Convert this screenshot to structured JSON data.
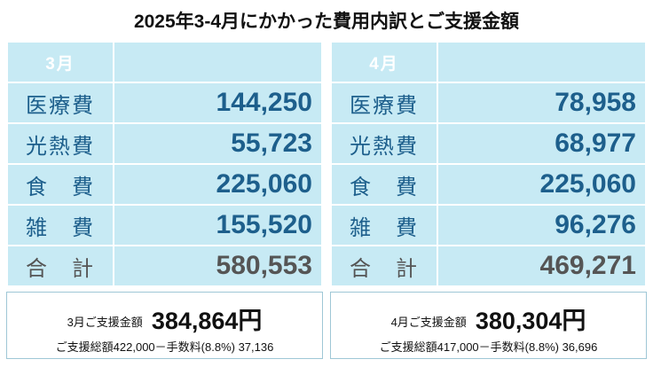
{
  "title": "2025年3-4月にかかった費用内訳とご支援金額",
  "tables": [
    {
      "month": "3月",
      "rows": [
        {
          "label": "医療費",
          "value": "144,250"
        },
        {
          "label": "光熱費",
          "value": "55,723"
        },
        {
          "label": "食　費",
          "value": "225,060"
        },
        {
          "label": "雑　費",
          "value": "155,520"
        },
        {
          "label": "合　計",
          "value": "580,553"
        }
      ],
      "support_label": "3月ご支援金額",
      "support_amount": "384,864円",
      "support_detail": "ご支援総額422,000－手数料(8.8%) 37,136"
    },
    {
      "month": "4月",
      "rows": [
        {
          "label": "医療費",
          "value": "78,958"
        },
        {
          "label": "光熱費",
          "value": "68,977"
        },
        {
          "label": "食　費",
          "value": "225,060"
        },
        {
          "label": "雑　費",
          "value": "96,276"
        },
        {
          "label": "合　計",
          "value": "469,271"
        }
      ],
      "support_label": "4月ご支援金額",
      "support_amount": "380,304円",
      "support_detail": "ご支援総額417,000－手数料(8.8%) 36,696"
    }
  ],
  "colors": {
    "table_bg": "#c7eaf4",
    "text_blue": "#1d5f8c",
    "total_gray": "#555555"
  }
}
